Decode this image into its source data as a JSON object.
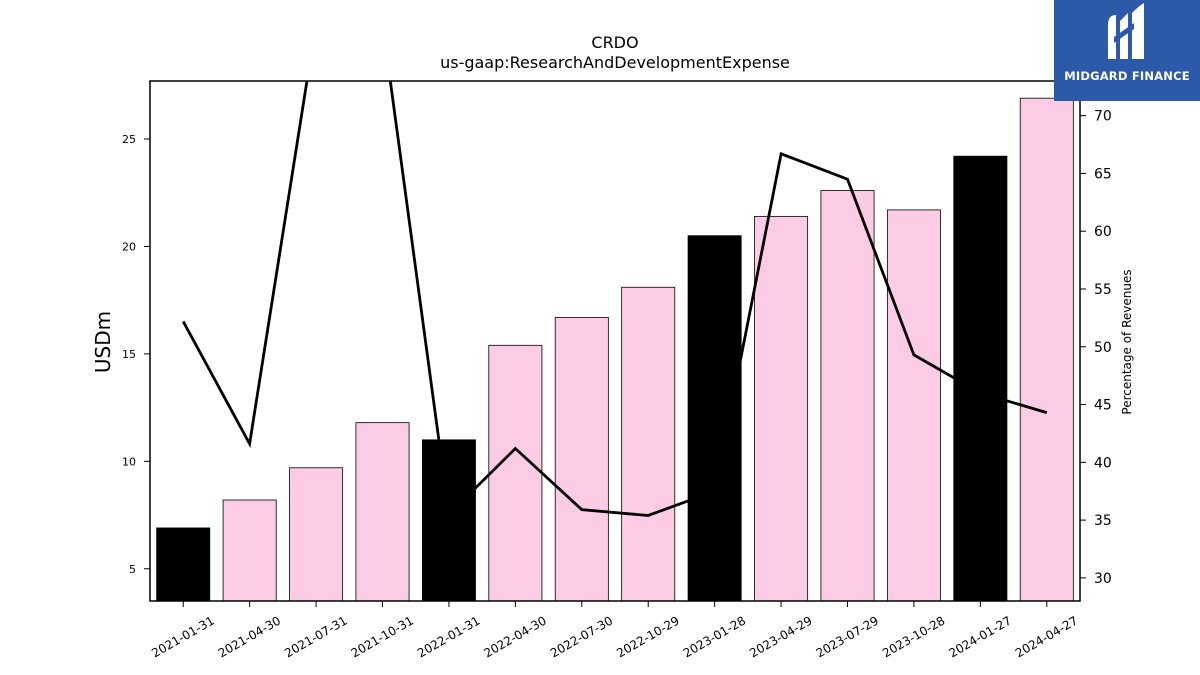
{
  "chart_data": {
    "type": "bar",
    "title": "CRDO",
    "subtitle": "us-gaap:ResearchAndDevelopmentExpense",
    "ylabel": "USDm",
    "y2label": "Percentage of Revenues",
    "ylim": [
      3.5,
      27.7
    ],
    "y2lim": [
      28,
      73
    ],
    "yticks": [
      5,
      10,
      15,
      20,
      25
    ],
    "y2ticks": [
      30,
      35,
      40,
      45,
      50,
      55,
      60,
      65,
      70
    ],
    "categories": [
      "2021-01-31",
      "2021-04-30",
      "2021-07-31",
      "2021-10-31",
      "2022-01-31",
      "2022-04-30",
      "2022-07-30",
      "2022-10-29",
      "2023-01-28",
      "2023-04-29",
      "2023-07-29",
      "2023-10-28",
      "2024-01-27",
      "2024-04-27"
    ],
    "series": [
      {
        "type": "bar",
        "axis": "left",
        "values": [
          6.9,
          8.2,
          9.7,
          11.8,
          11.0,
          15.4,
          16.7,
          18.1,
          20.5,
          21.4,
          22.6,
          21.7,
          24.2,
          26.9
        ],
        "colors": [
          "#000000",
          "#fccbe6",
          "#fccbe6",
          "#fccbe6",
          "#000000",
          "#fccbe6",
          "#fccbe6",
          "#fccbe6",
          "#000000",
          "#fccbe6",
          "#fccbe6",
          "#fccbe6",
          "#000000",
          "#fccbe6"
        ]
      },
      {
        "type": "line",
        "axis": "right",
        "color": "#000000",
        "values": [
          52.2,
          41.6,
          78.0,
          78.0,
          35.5,
          41.2,
          35.9,
          35.4,
          37.5,
          66.7,
          64.5,
          49.3,
          46.0,
          44.3
        ]
      }
    ],
    "grid": false
  },
  "logo": {
    "brand": "MIDGARD FINANCE",
    "background": "#2c5aa8",
    "icon": "midgard-m-icon"
  }
}
